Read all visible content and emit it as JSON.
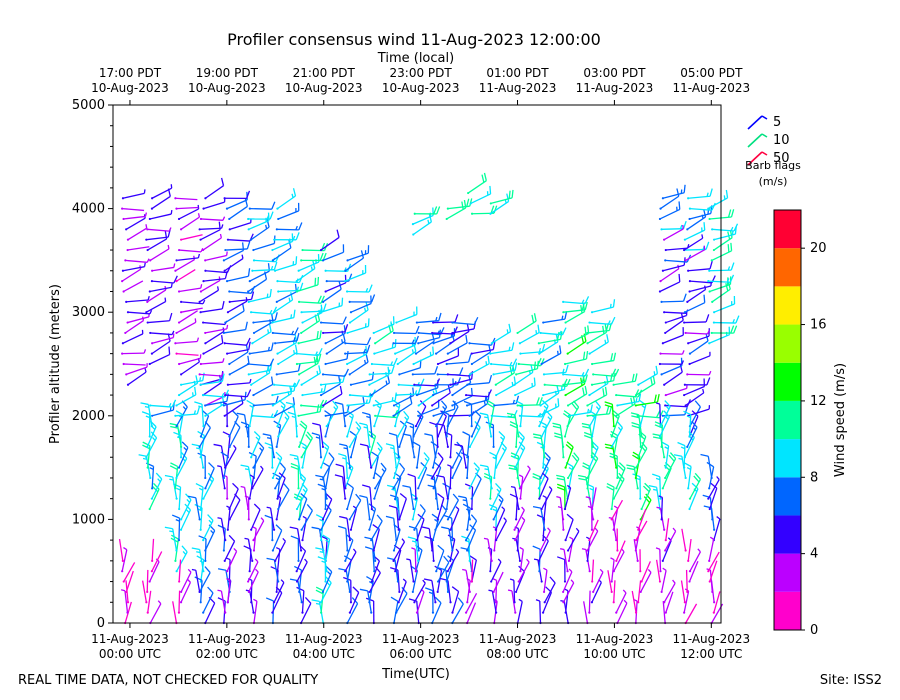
{
  "chart_data": {
    "type": "wind-barb-profile",
    "title": "Profiler consensus wind 11-Aug-2023 12:00:00",
    "top_axis_label": "Time (local)",
    "xlabel": "Time(UTC)",
    "ylabel": "Profiler altitude (meters)",
    "ylim": [
      0,
      5000
    ],
    "y_ticks": [
      0,
      1000,
      2000,
      3000,
      4000,
      5000
    ],
    "x_hours_range": [
      -0.35,
      12.2
    ],
    "bottom_ticks": [
      {
        "hour": 0,
        "line1": "11-Aug-2023",
        "line2": "00:00 UTC"
      },
      {
        "hour": 2,
        "line1": "11-Aug-2023",
        "line2": "02:00 UTC"
      },
      {
        "hour": 4,
        "line1": "11-Aug-2023",
        "line2": "04:00 UTC"
      },
      {
        "hour": 6,
        "line1": "11-Aug-2023",
        "line2": "06:00 UTC"
      },
      {
        "hour": 8,
        "line1": "11-Aug-2023",
        "line2": "08:00 UTC"
      },
      {
        "hour": 10,
        "line1": "11-Aug-2023",
        "line2": "10:00 UTC"
      },
      {
        "hour": 12,
        "line1": "11-Aug-2023",
        "line2": "12:00 UTC"
      }
    ],
    "top_ticks": [
      {
        "hour": 0,
        "line1": "17:00 PDT",
        "line2": "10-Aug-2023"
      },
      {
        "hour": 2,
        "line1": "19:00 PDT",
        "line2": "10-Aug-2023"
      },
      {
        "hour": 4,
        "line1": "21:00 PDT",
        "line2": "10-Aug-2023"
      },
      {
        "hour": 6,
        "line1": "23:00 PDT",
        "line2": "10-Aug-2023"
      },
      {
        "hour": 8,
        "line1": "01:00 PDT",
        "line2": "11-Aug-2023"
      },
      {
        "hour": 10,
        "line1": "03:00 PDT",
        "line2": "11-Aug-2023"
      },
      {
        "hour": 12,
        "line1": "05:00 PDT",
        "line2": "11-Aug-2023"
      }
    ],
    "barb_legend": {
      "title_line1": "Barb flags",
      "title_line2": "(m/s)",
      "entries": [
        {
          "label": "5",
          "color": "#0000ff"
        },
        {
          "label": "10",
          "color": "#00e080"
        },
        {
          "label": "50",
          "color": "#ff0040"
        }
      ]
    },
    "colorbar": {
      "label": "Wind speed (m/s)",
      "range": [
        0,
        22
      ],
      "ticks": [
        0,
        4,
        8,
        12,
        16,
        20
      ],
      "bins": [
        {
          "from": 0,
          "to": 2,
          "color": "#ff00cc"
        },
        {
          "from": 2,
          "to": 4,
          "color": "#bb00ff"
        },
        {
          "from": 4,
          "to": 6,
          "color": "#3300ff"
        },
        {
          "from": 6,
          "to": 8,
          "color": "#0066ff"
        },
        {
          "from": 8,
          "to": 10,
          "color": "#00e5ff"
        },
        {
          "from": 10,
          "to": 12,
          "color": "#00ff99"
        },
        {
          "from": 12,
          "to": 14,
          "color": "#00ff00"
        },
        {
          "from": 14,
          "to": 16,
          "color": "#99ff00"
        },
        {
          "from": 16,
          "to": 18,
          "color": "#ffee00"
        },
        {
          "from": 18,
          "to": 20,
          "color": "#ff6600"
        },
        {
          "from": 20,
          "to": 22,
          "color": "#ff0033"
        }
      ]
    },
    "columns": [
      {
        "hour": -0.1,
        "ranges": [
          [
            2300,
            4100,
            3.5
          ],
          [
            0,
            600,
            1.5
          ]
        ]
      },
      {
        "hour": 0.4,
        "ranges": [
          [
            2500,
            4150,
            4.5
          ],
          [
            1100,
            2100,
            9.0
          ],
          [
            0,
            650,
            1.5
          ]
        ]
      },
      {
        "hour": 1.0,
        "ranges": [
          [
            2400,
            4100,
            3.0
          ],
          [
            500,
            2300,
            9.0
          ],
          [
            0,
            400,
            2.0
          ]
        ]
      },
      {
        "hour": 1.5,
        "ranges": [
          [
            2100,
            4100,
            4.5
          ],
          [
            300,
            2300,
            8.0
          ],
          [
            0,
            300,
            6.0
          ]
        ]
      },
      {
        "hour": 2.0,
        "ranges": [
          [
            1500,
            4100,
            6.0
          ],
          [
            200,
            1500,
            5.0
          ],
          [
            0,
            200,
            4.0
          ]
        ]
      },
      {
        "hour": 2.5,
        "ranges": [
          [
            1300,
            4050,
            8.0
          ],
          [
            0,
            1300,
            4.0
          ]
        ]
      },
      {
        "hour": 3.0,
        "ranges": [
          [
            1200,
            4050,
            8.5
          ],
          [
            0,
            1200,
            5.5
          ]
        ]
      },
      {
        "hour": 3.5,
        "ranges": [
          [
            1000,
            3600,
            10.0
          ],
          [
            0,
            1000,
            6.0
          ]
        ]
      },
      {
        "hour": 4.0,
        "ranges": [
          [
            600,
            3600,
            7.0
          ],
          [
            0,
            600,
            9.0
          ]
        ]
      },
      {
        "hour": 4.5,
        "ranges": [
          [
            1300,
            3500,
            8.0
          ],
          [
            0,
            1300,
            6.0
          ]
        ]
      },
      {
        "hour": 5.0,
        "ranges": [
          [
            1500,
            2800,
            9.0
          ],
          [
            0,
            1500,
            6.5
          ]
        ]
      },
      {
        "hour": 5.5,
        "ranges": [
          [
            1000,
            2900,
            8.0
          ],
          [
            0,
            1000,
            6.0
          ]
        ]
      },
      {
        "hour": 5.9,
        "ranges": [
          [
            3750,
            3950,
            9.5
          ],
          [
            500,
            2900,
            7.0
          ],
          [
            0,
            500,
            5.0
          ]
        ]
      },
      {
        "hour": 6.3,
        "ranges": [
          [
            0,
            2950,
            6.5
          ]
        ]
      },
      {
        "hour": 6.6,
        "ranges": [
          [
            3900,
            4050,
            10.5
          ],
          [
            0,
            2900,
            6.0
          ]
        ]
      },
      {
        "hour": 7.0,
        "ranges": [
          [
            3950,
            4150,
            10.5
          ],
          [
            400,
            2750,
            7.0
          ],
          [
            0,
            400,
            3.0
          ]
        ]
      },
      {
        "hour": 7.5,
        "ranges": [
          [
            3950,
            4100,
            10.0
          ],
          [
            900,
            2700,
            9.0
          ],
          [
            0,
            900,
            3.5
          ]
        ]
      },
      {
        "hour": 8.0,
        "ranges": [
          [
            1300,
            2850,
            10.0
          ],
          [
            0,
            1300,
            4.0
          ]
        ]
      },
      {
        "hour": 8.5,
        "ranges": [
          [
            1200,
            2900,
            9.0
          ],
          [
            0,
            1200,
            5.0
          ]
        ]
      },
      {
        "hour": 9.0,
        "ranges": [
          [
            2900,
            3100,
            10.0
          ],
          [
            1100,
            2700,
            11.0
          ],
          [
            0,
            1100,
            4.0
          ]
        ]
      },
      {
        "hour": 9.5,
        "ranges": [
          [
            1100,
            3000,
            10.5
          ],
          [
            0,
            1100,
            3.0
          ]
        ]
      },
      {
        "hour": 10.0,
        "ranges": [
          [
            1100,
            2300,
            11.0
          ],
          [
            0,
            1000,
            2.5
          ]
        ]
      },
      {
        "hour": 10.5,
        "ranges": [
          [
            1000,
            2300,
            11.0
          ],
          [
            0,
            900,
            2.0
          ]
        ]
      },
      {
        "hour": 11.0,
        "ranges": [
          [
            3800,
            4100,
            7.5
          ],
          [
            1900,
            3700,
            5.0
          ],
          [
            1100,
            1900,
            10.0
          ],
          [
            0,
            1000,
            3.0
          ]
        ]
      },
      {
        "hour": 11.5,
        "ranges": [
          [
            3600,
            4100,
            8.5
          ],
          [
            1800,
            3600,
            5.0
          ],
          [
            1100,
            1800,
            9.0
          ],
          [
            0,
            700,
            2.0
          ]
        ]
      },
      {
        "hour": 12.0,
        "ranges": [
          [
            2700,
            4000,
            9.5
          ],
          [
            800,
            1400,
            6.0
          ],
          [
            0,
            650,
            2.0
          ]
        ]
      }
    ]
  },
  "footer": {
    "left_text": "REAL TIME DATA, NOT CHECKED FOR QUALITY",
    "right_text": "Site: ISS2"
  },
  "colors": {
    "axis": "#000000",
    "background": "#ffffff"
  }
}
